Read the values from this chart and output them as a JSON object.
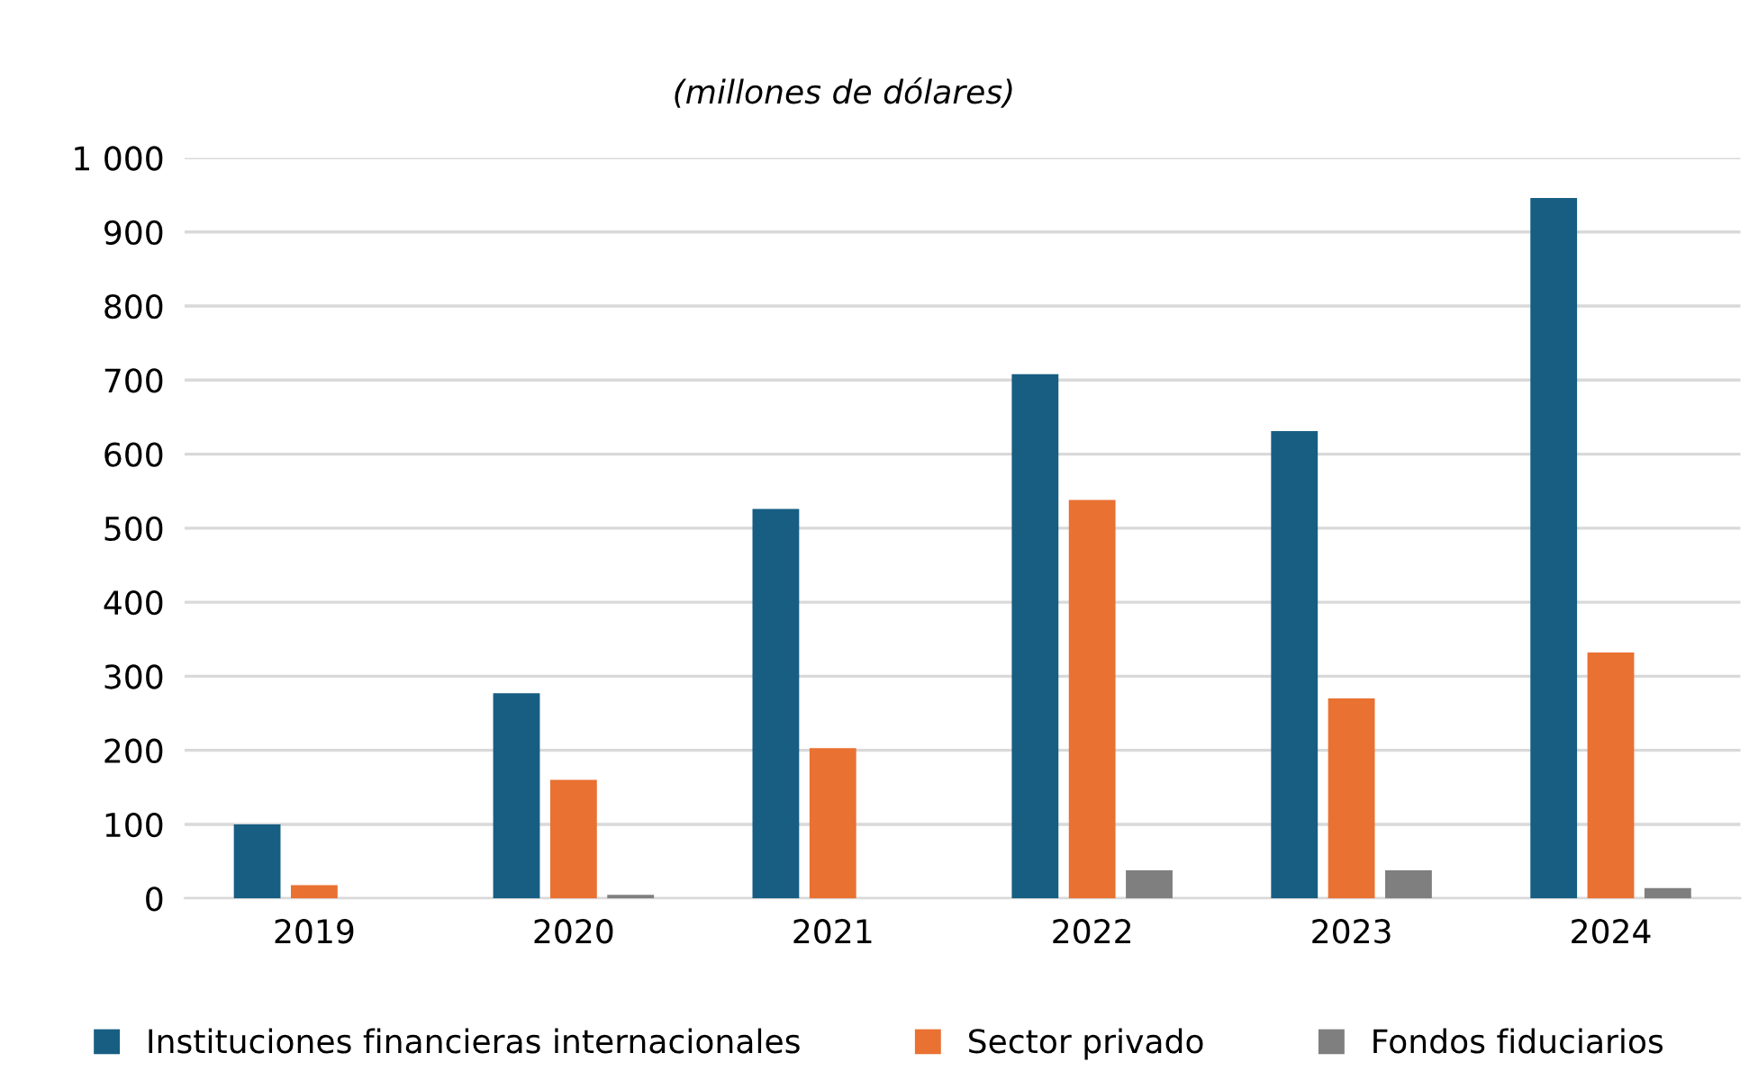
{
  "chart_data": {
    "type": "bar",
    "subtitle": "(millones de dólares)",
    "categories": [
      "2019",
      "2020",
      "2021",
      "2022",
      "2023",
      "2024"
    ],
    "series": [
      {
        "name": "Instituciones financieras internacionales",
        "color": "#175e82",
        "values": [
          100,
          277,
          526,
          708,
          631,
          946
        ]
      },
      {
        "name": "Sector privado",
        "color": "#e97132",
        "values": [
          18,
          160,
          203,
          538,
          270,
          332
        ]
      },
      {
        "name": "Fondos fiduciarios",
        "color": "#7f7f7f",
        "values": [
          null,
          5,
          null,
          38,
          38,
          14
        ]
      }
    ],
    "ylim": [
      0,
      1000
    ],
    "yticks": [
      0,
      100,
      200,
      300,
      400,
      500,
      600,
      700,
      800,
      900,
      {
        "value": 1000,
        "label": "1 000"
      }
    ],
    "grid": "y",
    "legend": "bottom"
  }
}
